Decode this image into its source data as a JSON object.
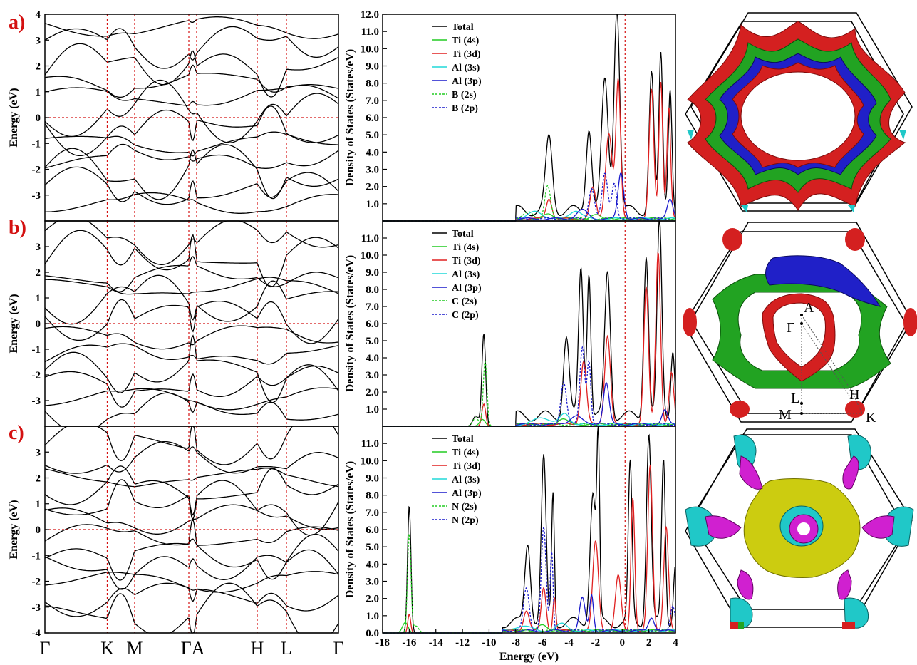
{
  "panel_labels": [
    "a)",
    "b)",
    "c)"
  ],
  "chart_data": [
    {
      "type": "line",
      "panel": "a)",
      "subtype": "band-structure",
      "ylabel": "Energy (eV)",
      "ylim": [
        -4,
        4
      ],
      "yticks": [
        "4",
        "3",
        "2",
        "1",
        "0",
        "-1",
        "-2",
        "-3"
      ],
      "kpoints": [
        "Γ",
        "K",
        "M",
        "Γ",
        "A",
        "H",
        "L",
        "Γ"
      ],
      "fermi_level": 0,
      "bands_near": [
        -3.3,
        -2.8,
        -2.1,
        -1.6,
        -1.0,
        -0.4,
        0.2,
        0.8,
        1.4,
        2.0,
        2.8,
        3.5
      ]
    },
    {
      "type": "line",
      "panel": "a)",
      "subtype": "density-of-states",
      "ylabel": "Density of States (States/eV)",
      "ylim": [
        0,
        12
      ],
      "yticks": [
        "12.0",
        "11.0",
        "10.0",
        "9.0",
        "8.0",
        "7.0",
        "6.0",
        "5.0",
        "4.0",
        "3.0",
        "2.0",
        "1.0"
      ],
      "fermi_level": 0,
      "legend": [
        "Total",
        "Ti (4s)",
        "Ti (3d)",
        "Al (3s)",
        "Al (3p)",
        "B (2s)",
        "B (2p)"
      ],
      "colors": [
        "#000000",
        "#22cc22",
        "#e02020",
        "#20d8d8",
        "#1a1acc",
        "#22cc22",
        "#1a1acc"
      ],
      "dashed": [
        false,
        false,
        false,
        false,
        false,
        true,
        true
      ],
      "series": [
        {
          "name": "Total",
          "peaks": [
            [
              -5.5,
              4.2,
              0.35
            ],
            [
              -2.5,
              4.9,
              0.3
            ],
            [
              -1.3,
              7.5,
              0.35
            ],
            [
              -0.4,
              12.0,
              0.3
            ],
            [
              2.2,
              8.0,
              0.25
            ],
            [
              2.9,
              9.0,
              0.2
            ],
            [
              3.6,
              7.3,
              0.2
            ]
          ],
          "onset": -8.0
        },
        {
          "name": "Ti (4s)",
          "peaks": [
            [
              -5.5,
              0.3,
              0.5
            ],
            [
              -2.0,
              0.2,
              0.5
            ]
          ],
          "onset": -8.0
        },
        {
          "name": "Ti (3d)",
          "peaks": [
            [
              -5.5,
              1.2,
              0.3
            ],
            [
              -2.2,
              1.8,
              0.3
            ],
            [
              -1.0,
              5.0,
              0.35
            ],
            [
              -0.3,
              8.0,
              0.25
            ],
            [
              2.2,
              7.5,
              0.25
            ],
            [
              2.9,
              8.0,
              0.2
            ],
            [
              3.5,
              6.5,
              0.2
            ]
          ],
          "onset": -8.0
        },
        {
          "name": "Al (3s)",
          "peaks": [
            [
              -6.5,
              0.4,
              0.8
            ],
            [
              -3.5,
              0.5,
              0.6
            ]
          ],
          "onset": -8.0
        },
        {
          "name": "Al (3p)",
          "peaks": [
            [
              -3.0,
              0.5,
              0.6
            ],
            [
              -0.1,
              2.7,
              0.3
            ],
            [
              3.6,
              1.1,
              0.3
            ]
          ],
          "onset": -8.0
        },
        {
          "name": "B (2s)",
          "peaks": [
            [
              -5.6,
              1.9,
              0.3
            ],
            [
              -7.0,
              0.4,
              0.5
            ]
          ],
          "onset": -8.0
        },
        {
          "name": "B (2p)",
          "peaks": [
            [
              -2.3,
              1.8,
              0.3
            ],
            [
              -1.3,
              2.6,
              0.3
            ],
            [
              -0.6,
              2.1,
              0.25
            ]
          ],
          "onset": -8.0
        }
      ]
    },
    {
      "type": "line",
      "panel": "b)",
      "subtype": "band-structure",
      "ylabel": "Energy (eV)",
      "ylim": [
        -4,
        4
      ],
      "yticks": [
        "3",
        "2",
        "1",
        "0",
        "-1",
        "-2",
        "-3"
      ],
      "kpoints": [
        "Γ",
        "K",
        "M",
        "Γ",
        "A",
        "H",
        "L",
        "Γ"
      ],
      "fermi_level": 0,
      "bands_near": [
        -3.4,
        -2.9,
        -2.4,
        -1.8,
        -1.2,
        -0.5,
        0.3,
        0.9,
        1.4,
        1.9,
        2.6,
        3.3
      ]
    },
    {
      "type": "line",
      "panel": "b)",
      "subtype": "density-of-states",
      "ylabel": "Density of States (States/eV)",
      "ylim": [
        0,
        12
      ],
      "yticks": [
        "11.0",
        "10.0",
        "9.0",
        "8.0",
        "7.0",
        "6.0",
        "5.0",
        "4.0",
        "3.0",
        "2.0",
        "1.0"
      ],
      "fermi_level": 0,
      "legend": [
        "Total",
        "Ti (4s)",
        "Ti (3d)",
        "Al (3s)",
        "Al (3p)",
        "C (2s)",
        "C (2p)"
      ],
      "colors": [
        "#000000",
        "#22cc22",
        "#e02020",
        "#20d8d8",
        "#1a1acc",
        "#22cc22",
        "#1a1acc"
      ],
      "dashed": [
        false,
        false,
        false,
        false,
        false,
        true,
        true
      ],
      "series": [
        {
          "name": "Total",
          "peaks": [
            [
              -10.4,
              5.4,
              0.2
            ],
            [
              -11.0,
              0.6,
              0.3
            ],
            [
              -4.2,
              4.6,
              0.3
            ],
            [
              -3.1,
              8.7,
              0.25
            ],
            [
              -2.5,
              8.5,
              0.2
            ],
            [
              -1.1,
              8.4,
              0.3
            ],
            [
              1.8,
              9.5,
              0.25
            ],
            [
              2.8,
              11.4,
              0.25
            ],
            [
              3.8,
              4.0,
              0.2
            ]
          ],
          "onset": -8.0
        },
        {
          "name": "Ti (4s)",
          "peaks": [
            [
              -10.5,
              0.4,
              0.3
            ],
            [
              -4.5,
              0.3,
              0.5
            ]
          ],
          "onset": -8.0
        },
        {
          "name": "Ti (3d)",
          "peaks": [
            [
              -10.4,
              1.3,
              0.2
            ],
            [
              -2.9,
              3.7,
              0.3
            ],
            [
              -1.1,
              5.2,
              0.3
            ],
            [
              1.8,
              8.0,
              0.25
            ],
            [
              2.7,
              10.1,
              0.25
            ],
            [
              3.7,
              3.0,
              0.25
            ]
          ],
          "onset": -8.0
        },
        {
          "name": "Al (3s)",
          "peaks": [
            [
              -6.0,
              0.4,
              0.8
            ],
            [
              -4.3,
              0.6,
              0.5
            ]
          ],
          "onset": -8.0
        },
        {
          "name": "Al (3p)",
          "peaks": [
            [
              -3.5,
              0.5,
              0.6
            ],
            [
              -1.2,
              2.4,
              0.3
            ],
            [
              3.2,
              0.8,
              0.3
            ]
          ],
          "onset": -8.0
        },
        {
          "name": "C (2s)",
          "peaks": [
            [
              -10.3,
              3.8,
              0.2
            ],
            [
              -11.0,
              0.5,
              0.3
            ]
          ],
          "onset": -8.0
        },
        {
          "name": "C (2p)",
          "peaks": [
            [
              -4.4,
              2.5,
              0.3
            ],
            [
              -3.0,
              4.5,
              0.25
            ],
            [
              -2.5,
              3.7,
              0.2
            ]
          ],
          "onset": -8.0
        }
      ]
    },
    {
      "type": "line",
      "panel": "c)",
      "subtype": "band-structure",
      "ylabel": "Energy (eV)",
      "ylim": [
        -4,
        4
      ],
      "yticks": [
        "3",
        "2",
        "1",
        "0",
        "-1",
        "-2",
        "-3",
        "-4"
      ],
      "xticklabels": [
        "Γ",
        "K",
        "M",
        "ΓA",
        "H",
        "L",
        "Γ"
      ],
      "kpoints": [
        "Γ",
        "K",
        "M",
        "Γ",
        "A",
        "H",
        "L",
        "Γ"
      ],
      "fermi_level": 0,
      "bands_near": [
        -3.3,
        -2.6,
        -2.0,
        -1.4,
        -0.9,
        -0.3,
        0.4,
        1.0,
        1.5,
        2.0,
        2.7,
        3.4
      ]
    },
    {
      "type": "line",
      "panel": "c)",
      "subtype": "density-of-states",
      "ylabel": "Density of States (States/eV)",
      "xlabel": "Energy (eV)",
      "xlim": [
        -18,
        4
      ],
      "xticks": [
        "-18",
        "-16",
        "-14",
        "-12",
        "-10",
        "-8",
        "-6",
        "-4",
        "-2",
        "0",
        "2",
        "4"
      ],
      "ylim": [
        0,
        12
      ],
      "yticks": [
        "11.0",
        "10.0",
        "9.0",
        "8.0",
        "7.0",
        "6.0",
        "5.0",
        "4.0",
        "3.0",
        "2.0",
        "1.0",
        "0.0"
      ],
      "fermi_level": 0,
      "legend": [
        "Total",
        "Ti (4s)",
        "Ti (3d)",
        "Al (3s)",
        "Al (3p)",
        "N (2s)",
        "N (2p)"
      ],
      "colors": [
        "#000000",
        "#22cc22",
        "#e02020",
        "#20d8d8",
        "#1a1acc",
        "#22cc22",
        "#1a1acc"
      ],
      "dashed": [
        false,
        false,
        false,
        false,
        false,
        true,
        true
      ],
      "series": [
        {
          "name": "Total",
          "peaks": [
            [
              -16.0,
              7.4,
              0.18
            ],
            [
              -7.1,
              4.7,
              0.3
            ],
            [
              -5.9,
              9.5,
              0.25
            ],
            [
              -5.2,
              7.6,
              0.15
            ],
            [
              -2.2,
              7.6,
              0.3
            ],
            [
              -1.8,
              10.0,
              0.15
            ],
            [
              0.6,
              9.2,
              0.2
            ],
            [
              2.0,
              11.0,
              0.25
            ],
            [
              3.1,
              9.5,
              0.2
            ],
            [
              4.0,
              3.6,
              0.2
            ]
          ],
          "onset": -9.0
        },
        {
          "name": "Ti (4s)",
          "peaks": [
            [
              -16.3,
              0.6,
              0.3
            ],
            [
              -6.0,
              0.3,
              0.5
            ]
          ],
          "onset": -9.0
        },
        {
          "name": "Ti (3d)",
          "peaks": [
            [
              -16.0,
              1.1,
              0.15
            ],
            [
              -7.2,
              1.2,
              0.3
            ],
            [
              -5.9,
              2.5,
              0.25
            ],
            [
              -5.1,
              2.0,
              0.15
            ],
            [
              -2.0,
              5.2,
              0.3
            ],
            [
              -0.3,
              3.2,
              0.3
            ],
            [
              0.8,
              7.8,
              0.2
            ],
            [
              2.1,
              9.6,
              0.25
            ],
            [
              3.3,
              6.1,
              0.25
            ]
          ],
          "onset": -9.0
        },
        {
          "name": "Al (3s)",
          "peaks": [
            [
              -7.5,
              0.3,
              0.8
            ],
            [
              -4.5,
              0.4,
              0.6
            ]
          ],
          "onset": -9.0
        },
        {
          "name": "Al (3p)",
          "peaks": [
            [
              -3.0,
              1.9,
              0.3
            ],
            [
              -2.3,
              2.1,
              0.2
            ],
            [
              2.2,
              0.8,
              0.3
            ]
          ],
          "onset": -9.0
        },
        {
          "name": "N (2s)",
          "peaks": [
            [
              -16.0,
              5.8,
              0.18
            ],
            [
              -15.5,
              0.4,
              0.3
            ]
          ],
          "onset": -9.0
        },
        {
          "name": "N (2p)",
          "peaks": [
            [
              -7.2,
              2.5,
              0.3
            ],
            [
              -5.9,
              6.0,
              0.25
            ],
            [
              -5.3,
              4.6,
              0.15
            ],
            [
              3.8,
              1.5,
              0.25
            ]
          ],
          "onset": -9.0
        }
      ]
    }
  ],
  "fermi_surface_labels": [
    "A",
    "Γ",
    "L",
    "H",
    "M",
    "K"
  ],
  "surface_colors": {
    "red": "#d42020",
    "green": "#22a322",
    "blue": "#2020c8",
    "cyan": "#20c8c8",
    "yellow": "#cccc10",
    "magenta": "#d020d0"
  }
}
